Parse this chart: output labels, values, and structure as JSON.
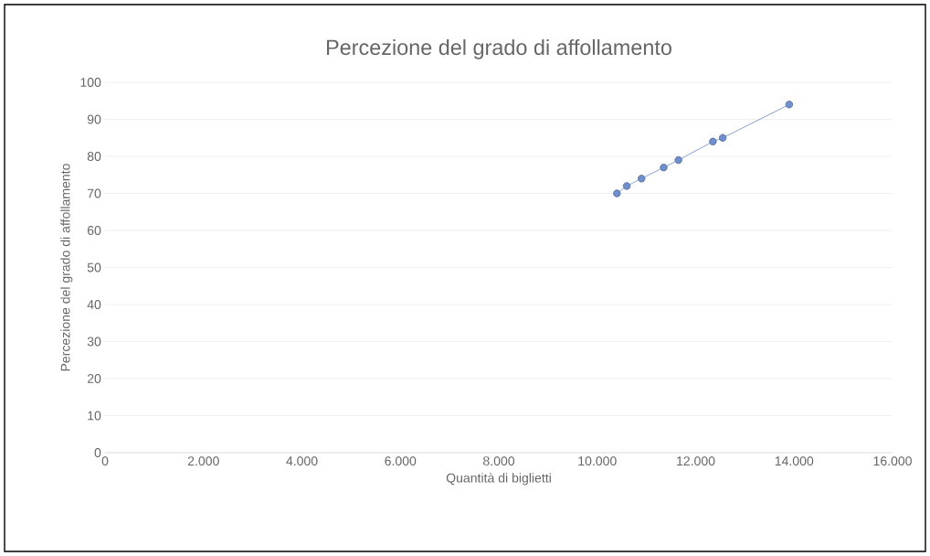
{
  "chart_data": {
    "type": "line",
    "title": "Percezione del grado di affollamento",
    "xlabel": "Quantità di biglietti",
    "ylabel": "Percezione del grado di affollamento",
    "x": [
      10400,
      10600,
      10900,
      11350,
      11650,
      12350,
      12550,
      13900
    ],
    "series": [
      {
        "color": "#6f8fcf",
        "values": [
          70,
          72,
          74,
          77,
          79,
          84,
          85,
          94
        ]
      }
    ],
    "xlim": [
      0,
      16000
    ],
    "xticks": [
      0,
      {
        "value": 2000,
        "label": "2.000"
      },
      {
        "value": 4000,
        "label": "4.000"
      },
      {
        "value": 6000,
        "label": "6.000"
      },
      {
        "value": 8000,
        "label": "8.000"
      },
      {
        "value": 10000,
        "label": "10.000"
      },
      {
        "value": 12000,
        "label": "12.000"
      },
      {
        "value": 14000,
        "label": "14.000"
      },
      {
        "value": 16000,
        "label": "16.000"
      }
    ],
    "ylim": [
      0,
      100
    ],
    "yticks": [
      0,
      10,
      20,
      30,
      40,
      50,
      60,
      70,
      80,
      90,
      100
    ],
    "grid": "y",
    "marker": "circle",
    "line_style": "solid"
  }
}
